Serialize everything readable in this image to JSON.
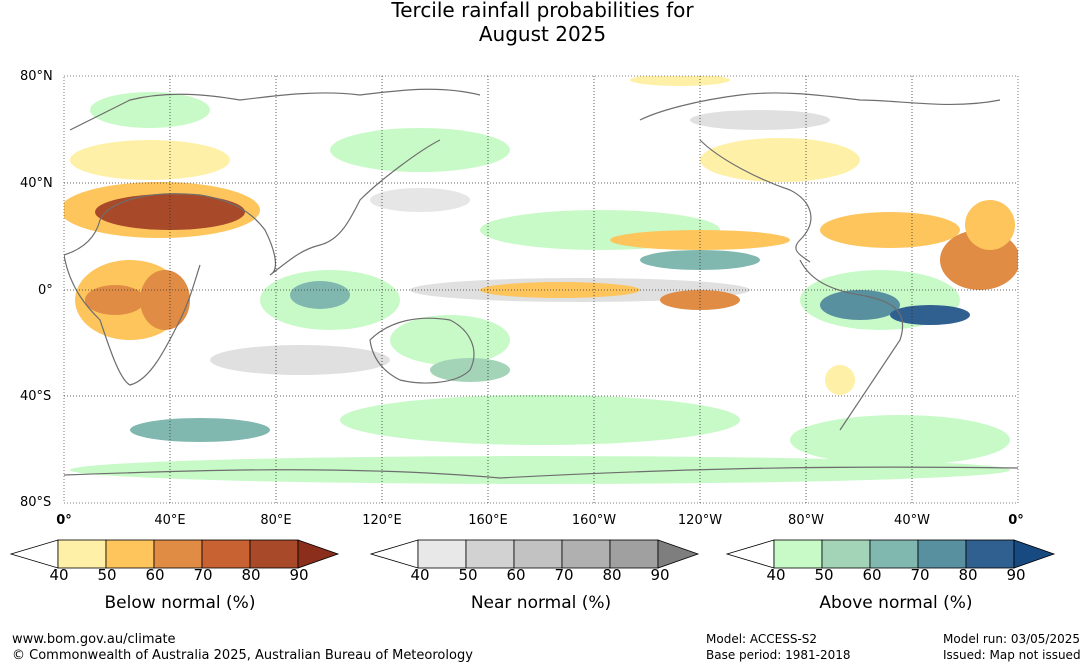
{
  "title": {
    "line1": "Tercile rainfall probabilities for",
    "line2": "August 2025"
  },
  "map": {
    "lat_labels": [
      "80°N",
      "40°N",
      "0°",
      "40°S",
      "80°S"
    ],
    "lon_labels": [
      "0°",
      "40°E",
      "80°E",
      "120°E",
      "160°E",
      "160°W",
      "120°W",
      "80°W",
      "40°W",
      "0°"
    ]
  },
  "colorbars": {
    "below": {
      "label": "Below normal (%)",
      "ticks": [
        "40",
        "50",
        "60",
        "70",
        "80",
        "90"
      ],
      "colors": [
        "#ffffff",
        "#fff0a8",
        "#fdc55c",
        "#e08c45",
        "#c86232",
        "#a84a2a",
        "#8c2e1c"
      ]
    },
    "near": {
      "label": "Near normal (%)",
      "ticks": [
        "40",
        "50",
        "60",
        "70",
        "80",
        "90"
      ],
      "colors": [
        "#ffffff",
        "#e8e8e8",
        "#d2d2d2",
        "#c2c2c2",
        "#b0b0b0",
        "#a0a0a0",
        "#7e7e7e"
      ]
    },
    "above": {
      "label": "Above normal (%)",
      "ticks": [
        "40",
        "50",
        "60",
        "70",
        "80",
        "90"
      ],
      "colors": [
        "#ffffff",
        "#c8fac8",
        "#a4d4b8",
        "#80b8b0",
        "#5890a0",
        "#306090",
        "#164a80"
      ]
    }
  },
  "footer": {
    "url": "www.bom.gov.au/climate",
    "copyright": "© Commonwealth of Australia 2025, Australian Bureau of Meteorology",
    "model": "Model: ACCESS-S2",
    "base_period": "Base period: 1981-2018",
    "model_run": "Model run: 03/05/2025",
    "issued": "Issued: Map not issued"
  }
}
